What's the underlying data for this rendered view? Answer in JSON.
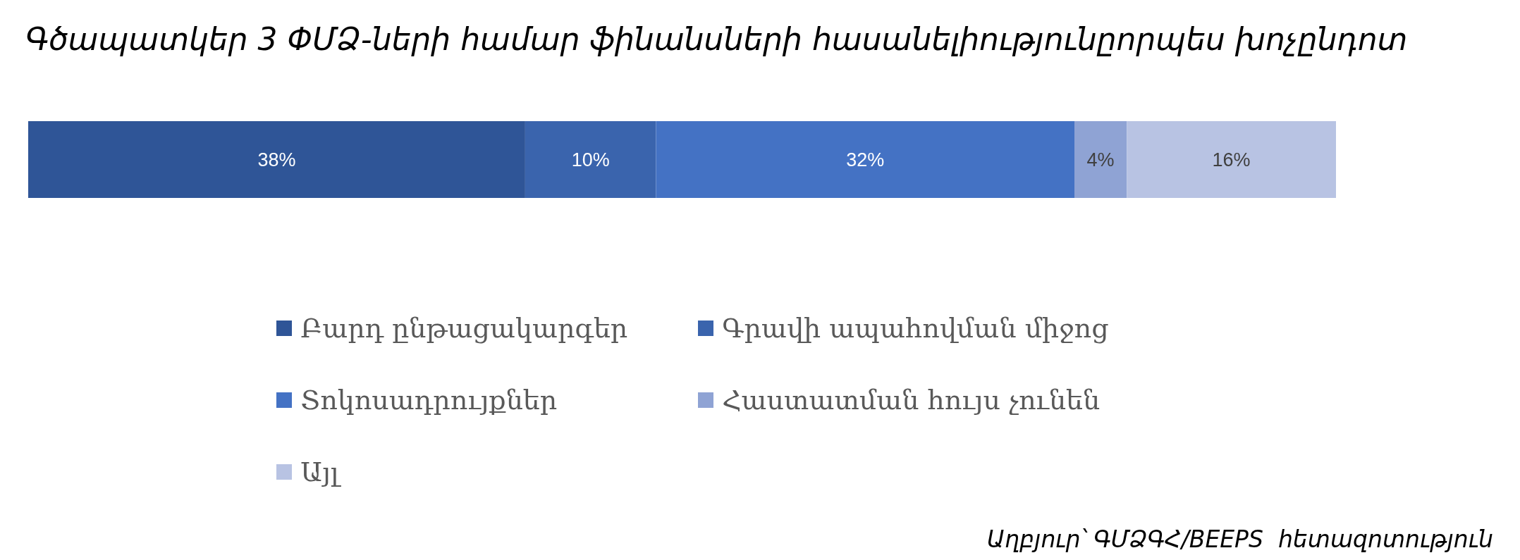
{
  "chart_data": {
    "type": "bar",
    "orientation": "horizontal",
    "stacked": true,
    "title": "Գծապատկեր 3 ՓՄՁ-ների համար ֆինանսների հասանելիությունըորպես խոչընդոտ",
    "categories": [
      null
    ],
    "series": [
      {
        "name": "Բարդ ընթացակարգեր",
        "color": "#2f5597",
        "values": [
          38
        ],
        "value_labels": [
          "38%"
        ]
      },
      {
        "name": "Գրավի ապահովման միջոց",
        "color": "#3a64ad",
        "values": [
          10
        ],
        "value_labels": [
          "10%"
        ]
      },
      {
        "name": "Տոկոսադրույքներ",
        "color": "#4472c4",
        "values": [
          32
        ],
        "value_labels": [
          "32%"
        ]
      },
      {
        "name": "Հաստատման հույս չունեն",
        "color": "#8fa3d4",
        "values": [
          4
        ],
        "value_labels": [
          "4%"
        ]
      },
      {
        "name": "Այլ",
        "color": "#b8c3e3",
        "values": [
          16
        ],
        "value_labels": [
          "16%"
        ]
      }
    ],
    "legend": "bottom",
    "annotations": [
      "Աղբյուր՝ ԳՄՁԳՀ/BEEPS  հետազոտություն"
    ]
  }
}
